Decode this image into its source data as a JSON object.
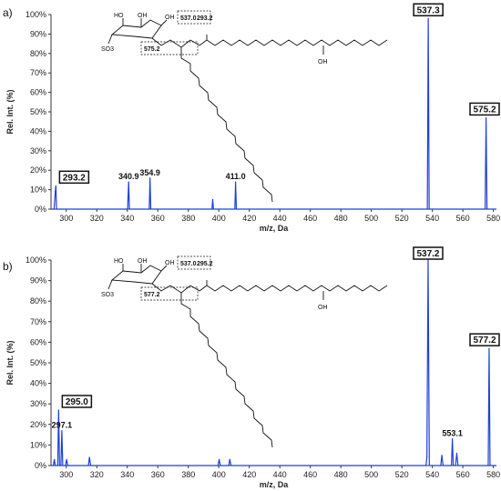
{
  "colors": {
    "peak": "#1f3fd8",
    "axis": "#333333",
    "text": "#111111"
  },
  "chart_data": [
    {
      "type": "line",
      "panel": "a)",
      "xlabel": "m/z, Da",
      "ylabel": "Rel. Int. (%)",
      "xlim": [
        290,
        582
      ],
      "ylim": [
        0,
        100
      ],
      "xticks": [
        "300",
        "320",
        "340",
        "360",
        "380",
        "400",
        "420",
        "440",
        "460",
        "480",
        "500",
        "520",
        "540",
        "560",
        "580"
      ],
      "yticks": [
        "0%",
        "10%",
        "20%",
        "30%",
        "40%",
        "50%",
        "60%",
        "70%",
        "80%",
        "90%",
        "100%"
      ],
      "series": [
        {
          "x": [
            292.0,
            292.8,
            293.2,
            293.6,
            340.2,
            340.9,
            341.4,
            354.4,
            354.9,
            355.4,
            395.5,
            396.0,
            396.5,
            410.5,
            411.0,
            411.5,
            536.7,
            537.3,
            537.9,
            574.6,
            575.2,
            575.8
          ],
          "y": [
            0,
            9,
            12,
            0,
            0,
            14,
            0,
            0,
            16,
            0,
            0,
            5,
            0,
            0,
            14,
            0,
            0,
            98,
            0,
            0,
            47,
            0
          ]
        }
      ],
      "peak_labels": [
        {
          "x": 340.9,
          "y": 14,
          "text": "340.9"
        },
        {
          "x": 354.9,
          "y": 16,
          "text": "354.9"
        },
        {
          "x": 411.0,
          "y": 14,
          "text": "411.0"
        }
      ],
      "boxed_labels": [
        {
          "x": 293.2,
          "y": 12,
          "text": "293.2"
        },
        {
          "x": 537.3,
          "y": 98,
          "text": "537.3"
        },
        {
          "x": 575.2,
          "y": 47,
          "text": "575.2"
        }
      ],
      "structure": {
        "fragments": [
          "537.0",
          "293.2",
          "575.2"
        ],
        "oh_label": "OH",
        "so3_label": "SO3",
        "ho_label": "HO"
      }
    },
    {
      "type": "line",
      "panel": "b)",
      "xlabel": "m/z, Da",
      "ylabel": "Rel. Int. (%)",
      "xlim": [
        290,
        582
      ],
      "ylim": [
        0,
        100
      ],
      "xticks": [
        "300",
        "320",
        "340",
        "360",
        "380",
        "400",
        "420",
        "440",
        "460",
        "480",
        "500",
        "520",
        "540",
        "560",
        "580"
      ],
      "yticks": [
        "0%",
        "10%",
        "20%",
        "30%",
        "40%",
        "50%",
        "60%",
        "70%",
        "80%",
        "90%",
        "100%"
      ],
      "series": [
        {
          "x": [
            291.5,
            292.2,
            292.8,
            294.4,
            295.0,
            295.6,
            296.5,
            297.1,
            297.7,
            299.5,
            300.2,
            301.0,
            314.5,
            315.2,
            316.0,
            399.5,
            400.2,
            401.0,
            406.5,
            407.2,
            408.0,
            535.8,
            536.4,
            537.2,
            538.0,
            545.5,
            546.2,
            547.0,
            552.5,
            553.1,
            553.7,
            555.2,
            556.0,
            556.8,
            576.6,
            577.2,
            577.8
          ],
          "y": [
            0,
            3,
            0,
            0,
            27,
            0,
            0,
            17,
            0,
            0,
            3,
            0,
            0,
            4,
            0,
            0,
            3,
            0,
            0,
            3,
            0,
            0,
            4,
            100,
            0,
            0,
            5,
            0,
            0,
            13,
            0,
            0,
            6,
            0,
            0,
            57,
            0
          ]
        }
      ],
      "peak_labels": [
        {
          "x": 297.1,
          "y": 17,
          "text": "297.1"
        },
        {
          "x": 553.1,
          "y": 13,
          "text": "553.1"
        }
      ],
      "boxed_labels": [
        {
          "x": 295.0,
          "y": 27,
          "text": "295.0"
        },
        {
          "x": 537.2,
          "y": 100,
          "text": "537.2"
        },
        {
          "x": 577.2,
          "y": 57,
          "text": "577.2"
        }
      ],
      "structure": {
        "fragments": [
          "537.0",
          "295.2",
          "577.2"
        ],
        "oh_label": "OH",
        "so3_label": "SO3",
        "ho_label": "HO"
      }
    }
  ]
}
